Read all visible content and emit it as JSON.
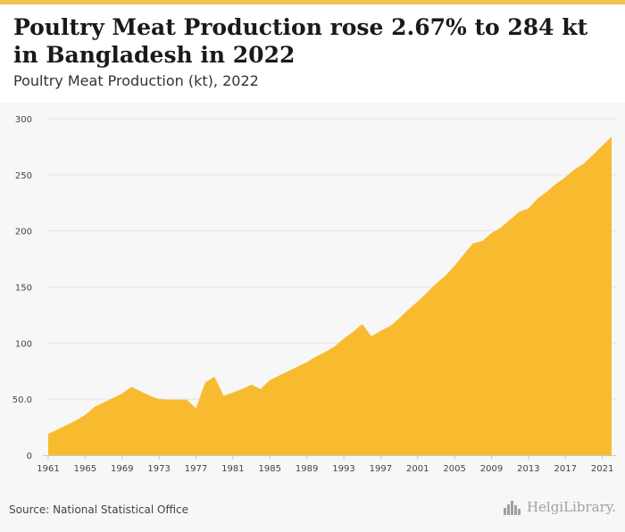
{
  "header": {
    "title": "Poultry Meat Production rose 2.67% to 284 kt in Bangladesh in 2022",
    "subtitle": "Poultry Meat Production (kt), 2022"
  },
  "footer": {
    "source": "Source: National Statistical Office",
    "logo_text": "HelgiLibrary."
  },
  "colors": {
    "area_fill": "#f8bb2f",
    "stripe": "#f5c14f",
    "grid": "#e3e3e3"
  },
  "chart_data": {
    "type": "area",
    "title": "Poultry Meat Production rose 2.67% to 284 kt in Bangladesh in 2022",
    "subtitle": "Poultry Meat Production (kt), 2022",
    "xlim": [
      1961,
      2022
    ],
    "ylim": [
      0,
      300
    ],
    "y_ticks": [
      0,
      50,
      100,
      150,
      200,
      250,
      300
    ],
    "y_tick_labels": [
      "0",
      "50.0",
      "100",
      "150",
      "200",
      "250",
      "300"
    ],
    "x_ticks": [
      1961,
      1965,
      1969,
      1973,
      1977,
      1981,
      1985,
      1989,
      1993,
      1997,
      2001,
      2005,
      2009,
      2013,
      2017,
      2021
    ],
    "x_tick_labels": [
      "1961",
      "1965",
      "1969",
      "1973",
      "1977",
      "1981",
      "1985",
      "1989",
      "1993",
      "1997",
      "2001",
      "2005",
      "2009",
      "2013",
      "2017",
      "2021"
    ],
    "grid": true,
    "legend": "none",
    "x": [
      1961,
      1962,
      1963,
      1964,
      1965,
      1966,
      1967,
      1968,
      1969,
      1970,
      1971,
      1972,
      1973,
      1974,
      1975,
      1976,
      1977,
      1978,
      1979,
      1980,
      1981,
      1982,
      1983,
      1984,
      1985,
      1986,
      1987,
      1988,
      1989,
      1990,
      1991,
      1992,
      1993,
      1994,
      1995,
      1996,
      1997,
      1998,
      1999,
      2000,
      2001,
      2002,
      2003,
      2004,
      2005,
      2006,
      2007,
      2008,
      2009,
      2010,
      2011,
      2012,
      2013,
      2014,
      2015,
      2016,
      2017,
      2018,
      2019,
      2020,
      2021,
      2022
    ],
    "values": [
      19,
      23,
      27,
      31,
      36,
      43,
      47,
      51,
      55,
      61,
      57,
      53,
      50,
      49.5,
      49.5,
      49.5,
      42,
      65,
      70,
      53,
      56,
      59,
      63,
      59,
      67,
      71,
      75,
      79,
      83,
      88,
      92,
      97,
      104,
      110,
      117,
      106,
      111,
      115,
      122,
      130,
      137,
      145,
      153,
      160,
      169,
      179,
      189,
      191,
      198,
      203,
      210,
      217,
      220,
      229,
      235,
      242,
      248,
      255,
      260,
      268,
      276,
      284
    ]
  }
}
